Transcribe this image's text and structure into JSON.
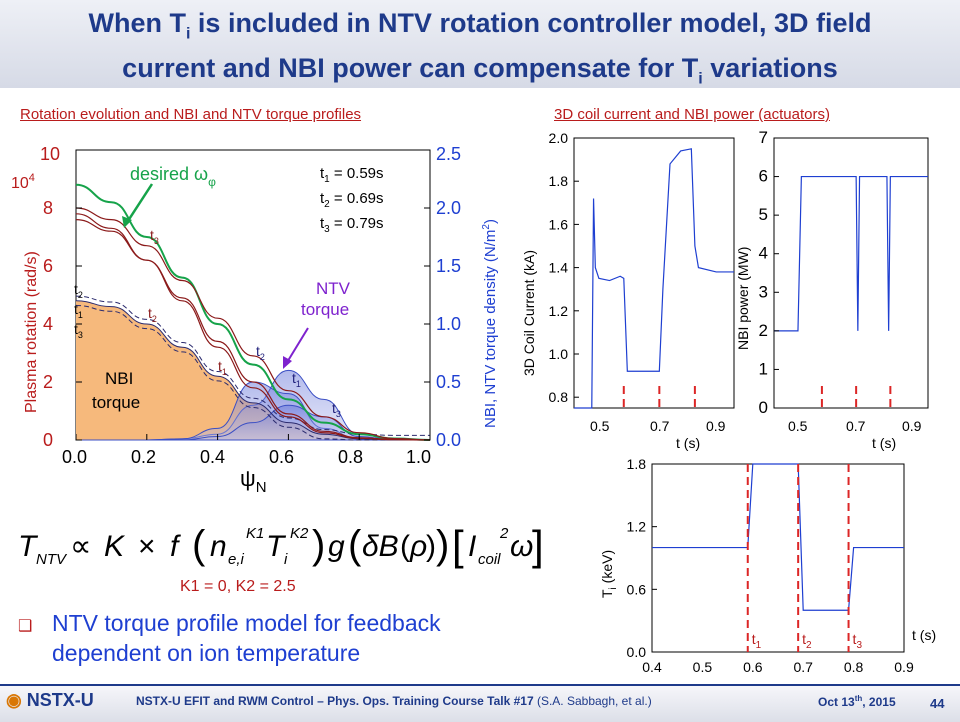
{
  "title_line1": "When T",
  "title_sub1": "i",
  "title_line1b": " is included in NTV rotation controller model, 3D field",
  "title_line2": "current and NBI power can compensate for T",
  "title_sub2": "i",
  "title_line2b": " variations",
  "left_section_header": "Rotation evolution and NBI and NTV torque profiles",
  "right_section_header": "3D coil current and NBI power (actuators)",
  "left_plot": {
    "y_left_label": "Plasma rotation (rad/s)",
    "y_left_exp": "10",
    "y_left_exp_sup": "4",
    "y_right_label": "NBI, NTV torque density (N/m",
    "y_right_label_sup": "2",
    "y_right_label_end": ")",
    "x_label": "ψ",
    "x_label_sub": "N",
    "desired_label": "desired  ω",
    "desired_sub": "φ",
    "ntv_label_1": "NTV",
    "ntv_label_2": "torque",
    "nbi_label_1": "NBI",
    "nbi_label_2": "torque",
    "legend": [
      "t",
      "1",
      " = 0.59s",
      "t",
      "2",
      " = 0.69s",
      "t",
      "3",
      " = 0.79s"
    ],
    "t1": "t",
    "t1s": "1",
    "t2": "t",
    "t2s": "2",
    "t3": "t",
    "t3s": "3"
  },
  "formula_constants": "K1 = 0, K2 = 2.5",
  "bullet_text_1": "NTV torque profile model for feedback",
  "bullet_text_2": "dependent on ion temperature",
  "coil_plot": {
    "ylabel": "3D Coil Current (kA)",
    "xlabel": "t (s)"
  },
  "nbi_plot": {
    "ylabel": "NBI power (MW)",
    "xlabel": "t (s)"
  },
  "ti_plot": {
    "ylabel": "T",
    "ylabel_sub": "i",
    "ylabel_end": " (keV)",
    "xlabel": "t (s)"
  },
  "footer_logo": "NSTX-U",
  "footer_text": "NSTX-U EFIT and RWM Control – Phys. Ops. Training Course Talk #17",
  "footer_authors": " (S.A. Sabbagh, et al.)",
  "footer_date": "Oct 13",
  "footer_date_sup": "th",
  "footer_date_end": ", 2015",
  "page_number": "44",
  "chart_data": [
    {
      "type": "line",
      "title": "Rotation evolution and NBI and NTV torque profiles",
      "xlabel": "ψN",
      "ylabel": "Plasma rotation (rad/s) ×10^4",
      "y2label": "NBI, NTV torque density (N/m2)",
      "xlim": [
        0.0,
        1.0
      ],
      "ylim": [
        0,
        10
      ],
      "y2lim": [
        0.0,
        2.5
      ],
      "x_ticks": [
        "0.0",
        "0.2",
        "0.4",
        "0.6",
        "0.8",
        "1.0"
      ],
      "y_ticks": [
        "0",
        "2",
        "4",
        "6",
        "8",
        "10"
      ],
      "y2_ticks": [
        "0.0",
        "0.5",
        "1.0",
        "1.5",
        "2.0",
        "2.5"
      ],
      "x": [
        0.0,
        0.1,
        0.2,
        0.3,
        0.4,
        0.5,
        0.6,
        0.7,
        0.8,
        0.9,
        1.0
      ],
      "series": [
        {
          "name": "desired ωφ",
          "color": "#16a34a",
          "values": [
            8.8,
            8.2,
            7.0,
            5.6,
            4.0,
            2.6,
            1.4,
            0.6,
            0.2,
            0.05,
            0.0
          ]
        },
        {
          "name": "t1",
          "color": "#8b1a1a",
          "values": [
            7.6,
            7.2,
            6.2,
            4.9,
            3.4,
            2.0,
            0.9,
            0.3,
            0.08,
            0.02,
            0.0
          ]
        },
        {
          "name": "t2",
          "color": "#8b1a1a",
          "values": [
            7.8,
            7.3,
            6.2,
            4.8,
            3.2,
            1.8,
            0.8,
            0.25,
            0.06,
            0.01,
            0.0
          ]
        },
        {
          "name": "t3",
          "color": "#8b1a1a",
          "values": [
            8.0,
            7.6,
            6.7,
            5.5,
            4.2,
            2.9,
            1.7,
            0.8,
            0.25,
            0.05,
            0.0
          ]
        }
      ],
      "torque_series": [
        {
          "name": "NBI torque",
          "color": "#f6b97c",
          "values": [
            1.2,
            1.15,
            1.0,
            0.8,
            0.55,
            0.32,
            0.15,
            0.05,
            0.01,
            0.0,
            0.0
          ]
        },
        {
          "name": "NTV t1",
          "color": "#3b4fc4",
          "values": [
            0,
            0,
            0,
            0.01,
            0.05,
            0.3,
            0.6,
            0.35,
            0.05,
            0.0,
            0.0
          ]
        },
        {
          "name": "NTV t2",
          "color": "#3b4fc4",
          "values": [
            0,
            0,
            0,
            0.01,
            0.1,
            0.5,
            0.4,
            0.1,
            0.01,
            0.0,
            0.0
          ]
        },
        {
          "name": "NTV t3",
          "color": "#3b4fc4",
          "values": [
            0,
            0,
            0,
            0.0,
            0.03,
            0.15,
            0.3,
            0.2,
            0.03,
            0.0,
            0.0
          ]
        }
      ]
    },
    {
      "type": "line",
      "title": "3D Coil Current",
      "xlabel": "t (s)",
      "ylabel": "3D Coil Current (kA)",
      "xlim": [
        0.45,
        0.9
      ],
      "ylim": [
        0.75,
        2.0
      ],
      "x_ticks": [
        "0.5",
        "0.7",
        "0.9"
      ],
      "y_ticks": [
        "0.8",
        "1.0",
        "1.2",
        "1.4",
        "1.6",
        "1.8",
        "2.0"
      ],
      "x": [
        0.45,
        0.5,
        0.505,
        0.51,
        0.52,
        0.55,
        0.58,
        0.59,
        0.6,
        0.65,
        0.69,
        0.7,
        0.72,
        0.75,
        0.78,
        0.79,
        0.8,
        0.85,
        0.9
      ],
      "series": [
        {
          "name": "3D coil current",
          "color": "#1e3fd1",
          "values": [
            0.75,
            0.75,
            1.72,
            1.4,
            1.35,
            1.34,
            1.36,
            1.35,
            0.92,
            0.92,
            0.92,
            1.3,
            1.88,
            1.94,
            1.95,
            1.5,
            1.4,
            1.38,
            1.38
          ]
        }
      ],
      "markers_t": [
        0.59,
        0.69,
        0.79
      ]
    },
    {
      "type": "line",
      "title": "NBI power",
      "xlabel": "t (s)",
      "ylabel": "NBI power (MW)",
      "xlim": [
        0.45,
        0.9
      ],
      "ylim": [
        0,
        7
      ],
      "x_ticks": [
        "0.5",
        "0.7",
        "0.9"
      ],
      "y_ticks": [
        "0",
        "1",
        "2",
        "3",
        "4",
        "5",
        "6",
        "7"
      ],
      "x": [
        0.45,
        0.52,
        0.53,
        0.69,
        0.695,
        0.7,
        0.705,
        0.78,
        0.785,
        0.79,
        0.8,
        0.9
      ],
      "series": [
        {
          "name": "NBI power",
          "color": "#1e3fd1",
          "values": [
            2,
            2,
            6,
            6,
            2,
            6,
            6,
            6,
            2,
            6,
            6,
            6
          ]
        }
      ],
      "markers_t": [
        0.59,
        0.69,
        0.79
      ]
    },
    {
      "type": "line",
      "title": "Ti",
      "xlabel": "t (s)",
      "ylabel": "Ti (keV)",
      "xlim": [
        0.4,
        0.9
      ],
      "ylim": [
        0.0,
        1.8
      ],
      "x_ticks": [
        "0.4",
        "0.5",
        "0.6",
        "0.7",
        "0.8",
        "0.9"
      ],
      "y_ticks": [
        "0.0",
        "0.6",
        "1.2",
        "1.8"
      ],
      "x": [
        0.4,
        0.59,
        0.6,
        0.69,
        0.7,
        0.79,
        0.8,
        0.9
      ],
      "series": [
        {
          "name": "Ti",
          "color": "#1e3fd1",
          "values": [
            1.0,
            1.0,
            1.8,
            1.8,
            0.4,
            0.4,
            1.0,
            1.0
          ]
        }
      ],
      "markers_t": [
        0.59,
        0.69,
        0.79
      ],
      "marker_labels": [
        "t1",
        "t2",
        "t3"
      ]
    }
  ]
}
